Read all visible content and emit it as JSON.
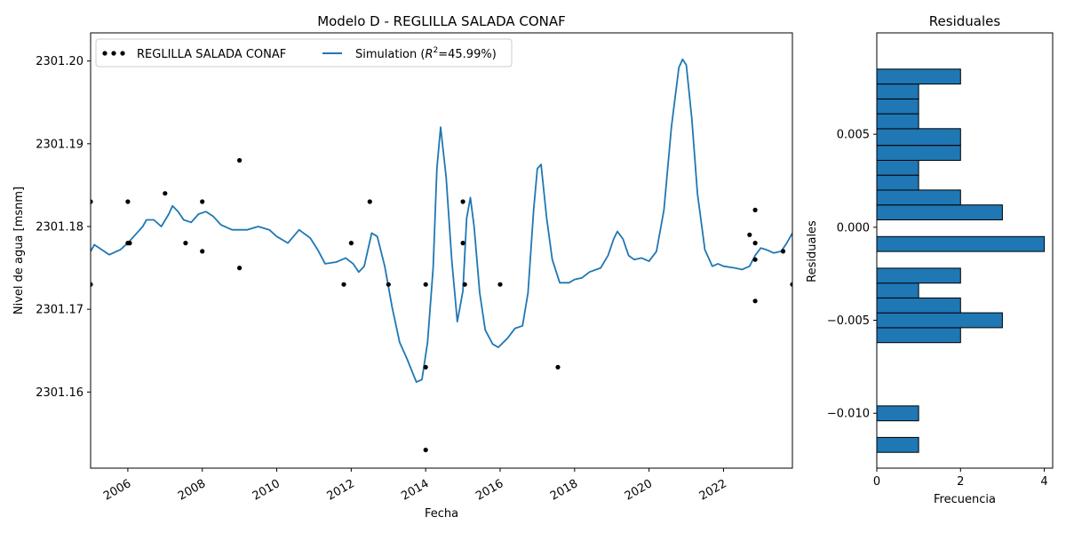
{
  "colors": {
    "simulation": "#1f77b4",
    "observed": "#000000",
    "hist_fill": "#1f77b4",
    "hist_edge": "#000000"
  },
  "chart_data": [
    {
      "type": "line",
      "title": "Modelo D - REGLILLA SALADA CONAF",
      "xlabel": "Fecha",
      "ylabel": "Nivel de agua [msnm]",
      "xlim": [
        2005.0,
        2023.85
      ],
      "ylim": [
        2301.1508,
        2301.2034
      ],
      "x_ticks": [
        2006,
        2008,
        2010,
        2012,
        2014,
        2016,
        2018,
        2020,
        2022
      ],
      "x_tick_labels": [
        "2006",
        "2008",
        "2010",
        "2012",
        "2014",
        "2016",
        "2018",
        "2020",
        "2022"
      ],
      "y_ticks": [
        2301.16,
        2301.17,
        2301.18,
        2301.19,
        2301.2
      ],
      "y_tick_labels": [
        "2301.16",
        "2301.17",
        "2301.18",
        "2301.19",
        "2301.20"
      ],
      "grid": false,
      "legend": {
        "placement": "top-left",
        "observed_label": "REGLILLA SALADA CONAF",
        "simulation_label_prefix": "Simulation (",
        "simulation_label_r2": "R",
        "simulation_label_suffix": "=45.99%)"
      },
      "series": [
        {
          "name": "Simulation (R²=45.99%)",
          "style": "line",
          "points": [
            [
              2005.0,
              2301.177
            ],
            [
              2005.1,
              2301.1778
            ],
            [
              2005.3,
              2301.1772
            ],
            [
              2005.5,
              2301.1766
            ],
            [
              2005.8,
              2301.1772
            ],
            [
              2006.0,
              2301.178
            ],
            [
              2006.2,
              2301.179
            ],
            [
              2006.4,
              2301.18
            ],
            [
              2006.5,
              2301.1808
            ],
            [
              2006.7,
              2301.1808
            ],
            [
              2006.9,
              2301.18
            ],
            [
              2007.1,
              2301.1815
            ],
            [
              2007.2,
              2301.1825
            ],
            [
              2007.35,
              2301.1818
            ],
            [
              2007.5,
              2301.1808
            ],
            [
              2007.7,
              2301.1805
            ],
            [
              2007.9,
              2301.1815
            ],
            [
              2008.1,
              2301.1818
            ],
            [
              2008.3,
              2301.1812
            ],
            [
              2008.5,
              2301.1802
            ],
            [
              2008.8,
              2301.1796
            ],
            [
              2009.2,
              2301.1796
            ],
            [
              2009.5,
              2301.18
            ],
            [
              2009.8,
              2301.1796
            ],
            [
              2010.0,
              2301.1788
            ],
            [
              2010.3,
              2301.178
            ],
            [
              2010.6,
              2301.1796
            ],
            [
              2010.9,
              2301.1786
            ],
            [
              2011.1,
              2301.1772
            ],
            [
              2011.3,
              2301.1755
            ],
            [
              2011.6,
              2301.1757
            ],
            [
              2011.85,
              2301.1762
            ],
            [
              2012.05,
              2301.1755
            ],
            [
              2012.2,
              2301.1745
            ],
            [
              2012.35,
              2301.1752
            ],
            [
              2012.55,
              2301.1792
            ],
            [
              2012.7,
              2301.1788
            ],
            [
              2012.9,
              2301.1752
            ],
            [
              2013.1,
              2301.1702
            ],
            [
              2013.3,
              2301.166
            ],
            [
              2013.5,
              2301.164
            ],
            [
              2013.75,
              2301.1612
            ],
            [
              2013.9,
              2301.1615
            ],
            [
              2014.05,
              2301.166
            ],
            [
              2014.2,
              2301.175
            ],
            [
              2014.3,
              2301.187
            ],
            [
              2014.4,
              2301.192
            ],
            [
              2014.55,
              2301.186
            ],
            [
              2014.7,
              2301.176
            ],
            [
              2014.85,
              2301.1685
            ],
            [
              2015.0,
              2301.1722
            ],
            [
              2015.1,
              2301.181
            ],
            [
              2015.2,
              2301.1835
            ],
            [
              2015.3,
              2301.18
            ],
            [
              2015.45,
              2301.172
            ],
            [
              2015.6,
              2301.1675
            ],
            [
              2015.8,
              2301.1658
            ],
            [
              2015.95,
              2301.1654
            ],
            [
              2016.2,
              2301.1665
            ],
            [
              2016.4,
              2301.1677
            ],
            [
              2016.6,
              2301.168
            ],
            [
              2016.75,
              2301.172
            ],
            [
              2016.9,
              2301.182
            ],
            [
              2017.0,
              2301.187
            ],
            [
              2017.1,
              2301.1875
            ],
            [
              2017.25,
              2301.181
            ],
            [
              2017.4,
              2301.176
            ],
            [
              2017.6,
              2301.1732
            ],
            [
              2017.85,
              2301.1732
            ],
            [
              2018.0,
              2301.1736
            ],
            [
              2018.2,
              2301.1738
            ],
            [
              2018.4,
              2301.1745
            ],
            [
              2018.7,
              2301.175
            ],
            [
              2018.9,
              2301.1765
            ],
            [
              2019.05,
              2301.1785
            ],
            [
              2019.15,
              2301.1794
            ],
            [
              2019.3,
              2301.1785
            ],
            [
              2019.45,
              2301.1765
            ],
            [
              2019.6,
              2301.176
            ],
            [
              2019.8,
              2301.1762
            ],
            [
              2020.0,
              2301.1758
            ],
            [
              2020.2,
              2301.177
            ],
            [
              2020.4,
              2301.182
            ],
            [
              2020.6,
              2301.192
            ],
            [
              2020.8,
              2301.1992
            ],
            [
              2020.9,
              2301.2002
            ],
            [
              2021.0,
              2301.1995
            ],
            [
              2021.15,
              2301.193
            ],
            [
              2021.3,
              2301.184
            ],
            [
              2021.5,
              2301.1772
            ],
            [
              2021.7,
              2301.1752
            ],
            [
              2021.85,
              2301.1755
            ],
            [
              2022.0,
              2301.1752
            ],
            [
              2022.3,
              2301.175
            ],
            [
              2022.5,
              2301.1748
            ],
            [
              2022.7,
              2301.1752
            ],
            [
              2022.85,
              2301.1765
            ],
            [
              2023.0,
              2301.1774
            ],
            [
              2023.15,
              2301.1772
            ],
            [
              2023.35,
              2301.1768
            ],
            [
              2023.55,
              2301.177
            ],
            [
              2023.7,
              2301.178
            ],
            [
              2023.85,
              2301.1792
            ]
          ]
        },
        {
          "name": "REGLILLA SALADA CONAF",
          "style": "points",
          "points": [
            [
              2005.0,
              2301.183
            ],
            [
              2005.0,
              2301.173
            ],
            [
              2006.0,
              2301.183
            ],
            [
              2006.0,
              2301.178
            ],
            [
              2006.05,
              2301.178
            ],
            [
              2007.0,
              2301.184
            ],
            [
              2007.55,
              2301.178
            ],
            [
              2008.0,
              2301.183
            ],
            [
              2008.0,
              2301.177
            ],
            [
              2009.0,
              2301.188
            ],
            [
              2009.0,
              2301.175
            ],
            [
              2011.8,
              2301.173
            ],
            [
              2012.0,
              2301.178
            ],
            [
              2012.5,
              2301.183
            ],
            [
              2013.0,
              2301.173
            ],
            [
              2014.0,
              2301.173
            ],
            [
              2014.0,
              2301.163
            ],
            [
              2014.0,
              2301.153
            ],
            [
              2015.0,
              2301.183
            ],
            [
              2015.0,
              2301.178
            ],
            [
              2015.05,
              2301.173
            ],
            [
              2016.0,
              2301.173
            ],
            [
              2017.55,
              2301.163
            ],
            [
              2022.7,
              2301.179
            ],
            [
              2022.85,
              2301.182
            ],
            [
              2022.85,
              2301.178
            ],
            [
              2022.85,
              2301.176
            ],
            [
              2022.85,
              2301.171
            ],
            [
              2023.6,
              2301.177
            ],
            [
              2023.85,
              2301.173
            ]
          ]
        }
      ]
    },
    {
      "type": "bar",
      "orientation": "horizontal",
      "title": "Residuales",
      "xlabel": "Frecuencia",
      "ylabel": "Residuales",
      "xlim": [
        0,
        4.2
      ],
      "ylim": [
        -0.01295,
        0.01045
      ],
      "x_ticks": [
        0,
        2,
        4
      ],
      "x_tick_labels": [
        "0",
        "2",
        "4"
      ],
      "y_ticks": [
        -0.01,
        -0.005,
        0.0,
        0.005
      ],
      "y_tick_labels": [
        "−0.010",
        "−0.005",
        "0.000",
        "0.005"
      ],
      "bins": [
        {
          "from": -0.0121,
          "to": -0.0113,
          "count": 1
        },
        {
          "from": -0.0104,
          "to": -0.0096,
          "count": 1
        },
        {
          "from": -0.0062,
          "to": -0.0054,
          "count": 2
        },
        {
          "from": -0.0054,
          "to": -0.0046,
          "count": 3
        },
        {
          "from": -0.0046,
          "to": -0.0038,
          "count": 2
        },
        {
          "from": -0.0038,
          "to": -0.003,
          "count": 1
        },
        {
          "from": -0.003,
          "to": -0.0022,
          "count": 2
        },
        {
          "from": -0.0013,
          "to": -0.0005,
          "count": 4
        },
        {
          "from": 0.0004,
          "to": 0.0012,
          "count": 3
        },
        {
          "from": 0.0012,
          "to": 0.002,
          "count": 2
        },
        {
          "from": 0.002,
          "to": 0.0028,
          "count": 1
        },
        {
          "from": 0.0028,
          "to": 0.0036,
          "count": 1
        },
        {
          "from": 0.0036,
          "to": 0.0044,
          "count": 2
        },
        {
          "from": 0.0044,
          "to": 0.0053,
          "count": 2
        },
        {
          "from": 0.0053,
          "to": 0.0061,
          "count": 1
        },
        {
          "from": 0.0061,
          "to": 0.0069,
          "count": 1
        },
        {
          "from": 0.0069,
          "to": 0.0077,
          "count": 1
        },
        {
          "from": 0.0077,
          "to": 0.0085,
          "count": 2
        }
      ]
    }
  ]
}
